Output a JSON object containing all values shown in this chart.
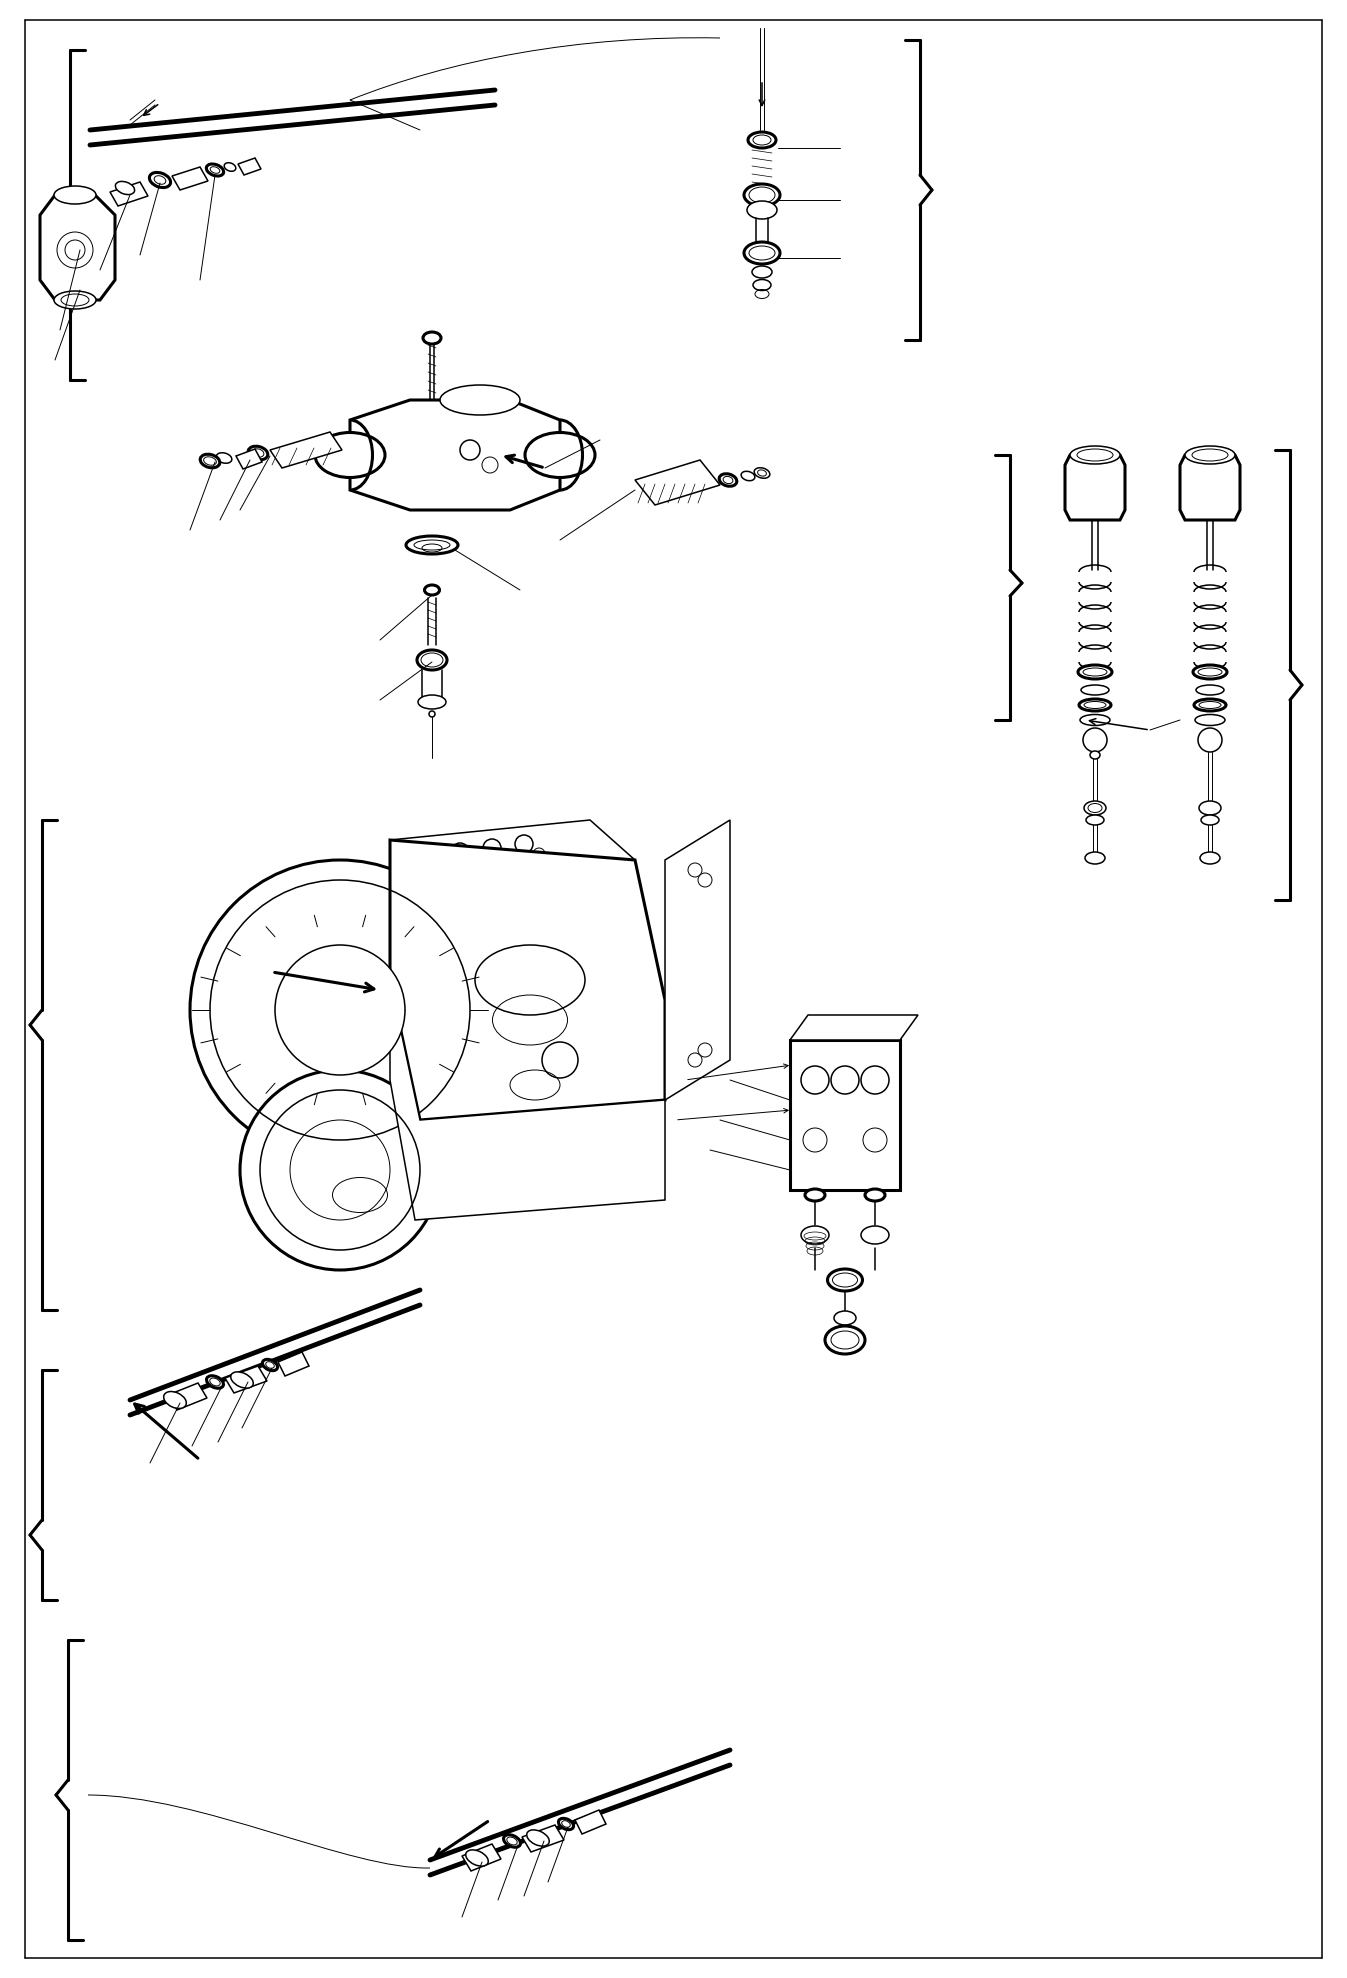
{
  "bg_color": "#ffffff",
  "line_color": "#000000",
  "fig_width": 13.47,
  "fig_height": 19.78,
  "lw_thin": 0.7,
  "lw_med": 1.1,
  "lw_thick": 2.2,
  "lw_vthick": 3.5
}
